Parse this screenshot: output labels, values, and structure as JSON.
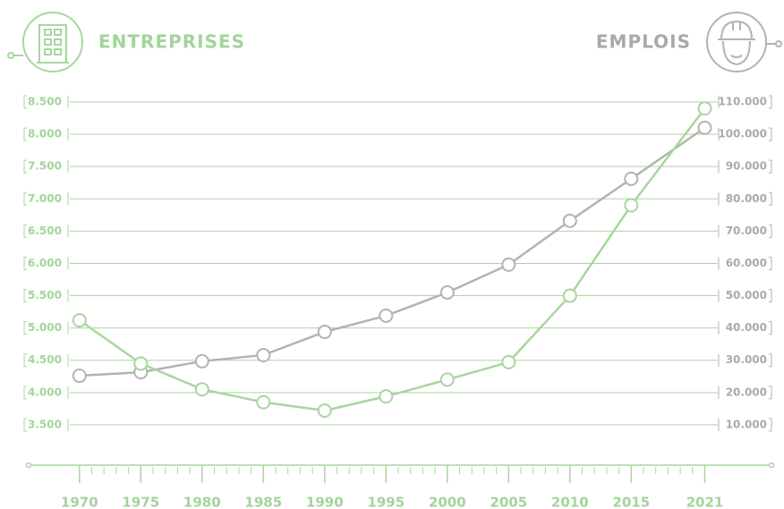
{
  "chart_data": {
    "type": "line",
    "x": [
      1970,
      1975,
      1980,
      1985,
      1990,
      1995,
      2000,
      2005,
      2010,
      2015,
      2021
    ],
    "xlim": [
      1966,
      2026
    ],
    "xticks": [
      1970,
      1975,
      1980,
      1985,
      1990,
      1995,
      2000,
      2005,
      2010,
      2015,
      2021
    ],
    "ylim": [
      3000,
      8500
    ],
    "yticks": [
      {
        "value": 3500,
        "label": "3.500"
      },
      {
        "value": 4000,
        "label": "4.000"
      },
      {
        "value": 4500,
        "label": "4.500"
      },
      {
        "value": 5000,
        "label": "5.000"
      },
      {
        "value": 5500,
        "label": "5.500"
      },
      {
        "value": 6000,
        "label": "6.000"
      },
      {
        "value": 6500,
        "label": "6.500"
      },
      {
        "value": 7000,
        "label": "7.000"
      },
      {
        "value": 7500,
        "label": "7.500"
      },
      {
        "value": 8000,
        "label": "8.000"
      },
      {
        "value": 8500,
        "label": "8.500"
      }
    ],
    "y2lim": [
      0,
      110000
    ],
    "y2ticks": [
      {
        "value": 10000,
        "label": "10.000"
      },
      {
        "value": 20000,
        "label": "20.000"
      },
      {
        "value": 30000,
        "label": "30.000"
      },
      {
        "value": 40000,
        "label": "40.000"
      },
      {
        "value": 50000,
        "label": "50.000"
      },
      {
        "value": 60000,
        "label": "60.000"
      },
      {
        "value": 70000,
        "label": "70.000"
      },
      {
        "value": 80000,
        "label": "80.000"
      },
      {
        "value": 90000,
        "label": "90.000"
      },
      {
        "value": 100000,
        "label": "100.000"
      },
      {
        "value": 110000,
        "label": "110.000"
      }
    ],
    "grid": true,
    "series": [
      {
        "name": "ENTREPRISES",
        "color": "#a8d69f",
        "values": [
          5120,
          4450,
          4050,
          3850,
          3720,
          3940,
          4200,
          4470,
          5500,
          6900,
          8400
        ]
      },
      {
        "name": "EMPLOIS",
        "color": "#b3b3b3",
        "axis": "y2",
        "values": [
          25200,
          26300,
          29700,
          31600,
          38800,
          43800,
          51000,
          59600,
          73200,
          86200,
          102000
        ]
      }
    ]
  }
}
